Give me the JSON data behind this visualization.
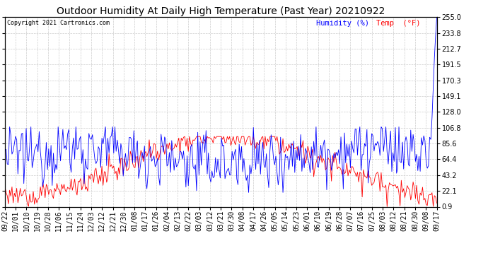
{
  "title": "Outdoor Humidity At Daily High Temperature (Past Year) 20210922",
  "copyright": "Copyright 2021 Cartronics.com",
  "legend_blue": "Humidity (%)",
  "legend_red": "Temp  (°F)",
  "ylim": [
    0.9,
    255.0
  ],
  "yticks": [
    0.9,
    22.1,
    43.2,
    64.4,
    85.6,
    106.8,
    128.0,
    149.1,
    170.3,
    191.5,
    212.7,
    233.8,
    255.0
  ],
  "background_color": "#ffffff",
  "grid_color": "#cccccc",
  "line_blue_color": "#0000ff",
  "line_red_color": "#ff0000",
  "title_fontsize": 10,
  "tick_fontsize": 7,
  "x_labels": [
    "09/22",
    "10/01",
    "10/10",
    "10/19",
    "10/28",
    "11/06",
    "11/15",
    "11/24",
    "12/03",
    "12/12",
    "12/21",
    "12/30",
    "01/08",
    "01/17",
    "01/26",
    "02/04",
    "02/13",
    "02/22",
    "03/03",
    "03/12",
    "03/21",
    "03/30",
    "04/08",
    "04/17",
    "04/26",
    "05/05",
    "05/14",
    "05/23",
    "06/01",
    "06/10",
    "06/19",
    "06/28",
    "07/07",
    "07/16",
    "07/25",
    "08/03",
    "08/12",
    "08/21",
    "08/30",
    "09/08",
    "09/17"
  ],
  "n_points": 366
}
